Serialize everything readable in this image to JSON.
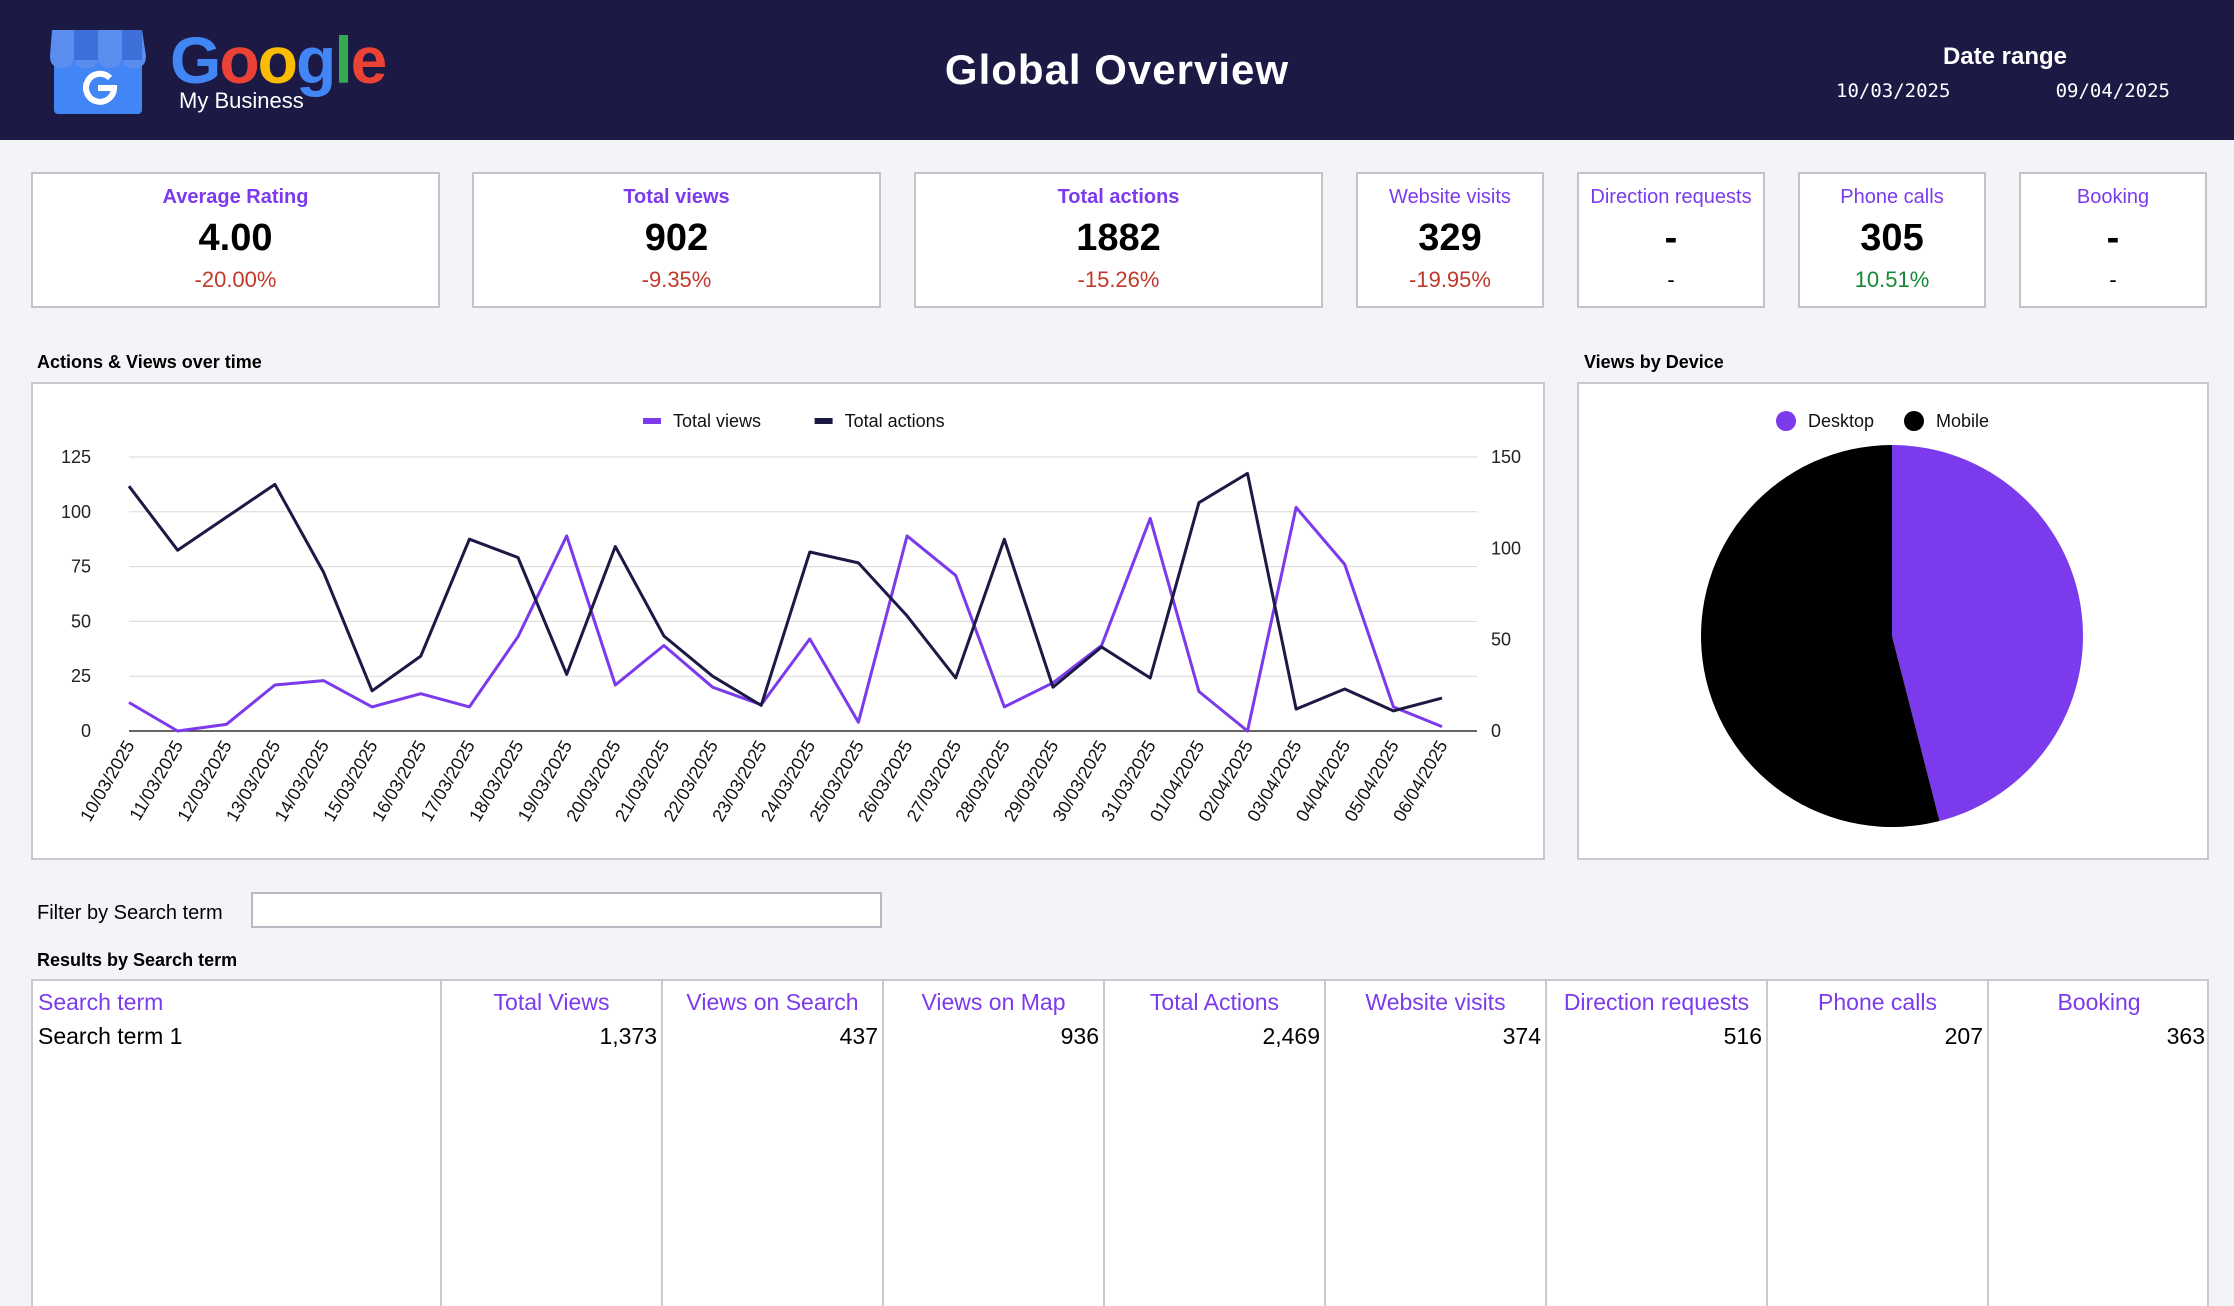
{
  "header": {
    "logo_word": "Google",
    "logo_sub": "My Business",
    "title": "Global Overview",
    "date_range": {
      "label": "Date range",
      "from": "10/03/2025",
      "to": "09/04/2025"
    }
  },
  "kpis": [
    {
      "title": "Average Rating",
      "value": "4.00",
      "delta": "-20.00%"
    },
    {
      "title": "Total views",
      "value": "902",
      "delta": "-9.35%"
    },
    {
      "title": "Total actions",
      "value": "1882",
      "delta": "-15.26%"
    },
    {
      "title": "Website visits",
      "value": "329",
      "delta": "-19.95%"
    },
    {
      "title": "Direction requests",
      "value": "-",
      "delta": "-"
    },
    {
      "title": "Phone calls",
      "value": "305",
      "delta": "10.51%"
    },
    {
      "title": "Booking",
      "value": "-",
      "delta": "-"
    }
  ],
  "colors": {
    "header_bg": "#1c1945",
    "accent": "#7c3aed",
    "actions_line": "#1c1945",
    "negative": "#c0392b",
    "positive": "#138a36"
  },
  "line_section_title": "Actions & Views over time",
  "pie_section_title": "Views by Device",
  "filter": {
    "label": "Filter by Search term",
    "value": ""
  },
  "table_title": "Results by Search term",
  "table": {
    "headers": [
      "Search term",
      "Total Views",
      "Views on Search",
      "Views on Map",
      "Total Actions",
      "Website visits",
      "Direction requests",
      "Phone calls",
      "Booking"
    ],
    "rows": [
      [
        "Search term 1",
        "1,373",
        "437",
        "936",
        "2,469",
        "374",
        "516",
        "207",
        "363"
      ]
    ]
  },
  "chart_data": [
    {
      "type": "line",
      "x": [
        "10/03/2025",
        "11/03/2025",
        "12/03/2025",
        "13/03/2025",
        "14/03/2025",
        "15/03/2025",
        "16/03/2025",
        "17/03/2025",
        "18/03/2025",
        "19/03/2025",
        "20/03/2025",
        "21/03/2025",
        "22/03/2025",
        "23/03/2025",
        "24/03/2025",
        "25/03/2025",
        "26/03/2025",
        "27/03/2025",
        "28/03/2025",
        "29/03/2025",
        "30/03/2025",
        "31/03/2025",
        "01/04/2025",
        "02/04/2025",
        "03/04/2025",
        "04/04/2025",
        "05/04/2025",
        "06/04/2025"
      ],
      "series": [
        {
          "name": "Total views",
          "axis": "left",
          "color": "#7c3aed",
          "values": [
            13,
            0,
            3,
            21,
            23,
            11,
            17,
            11,
            43,
            89,
            21,
            39,
            20,
            12,
            42,
            4,
            89,
            71,
            11,
            22,
            39,
            97,
            18,
            0,
            102,
            76,
            11,
            2
          ]
        },
        {
          "name": "Total actions",
          "axis": "right",
          "color": "#1c1945",
          "values": [
            134,
            99,
            117,
            135,
            87,
            22,
            41,
            105,
            95,
            31,
            101,
            52,
            30,
            14,
            98,
            92,
            63,
            29,
            105,
            24,
            46,
            29,
            125,
            141,
            12,
            23,
            11,
            18
          ]
        }
      ],
      "ylim": [
        0,
        125
      ],
      "y_ticks": [
        "0",
        "25",
        "50",
        "75",
        "100",
        "125"
      ],
      "y2lim": [
        0,
        150
      ],
      "y2_ticks": [
        "0",
        "50",
        "100",
        "150"
      ],
      "legend": "top-center",
      "grid": true
    },
    {
      "type": "pie",
      "labels": [
        "Desktop",
        "Mobile"
      ],
      "values": [
        46,
        54
      ],
      "colors": [
        "#7c3aed",
        "#000000"
      ],
      "legend": "top-center"
    }
  ]
}
